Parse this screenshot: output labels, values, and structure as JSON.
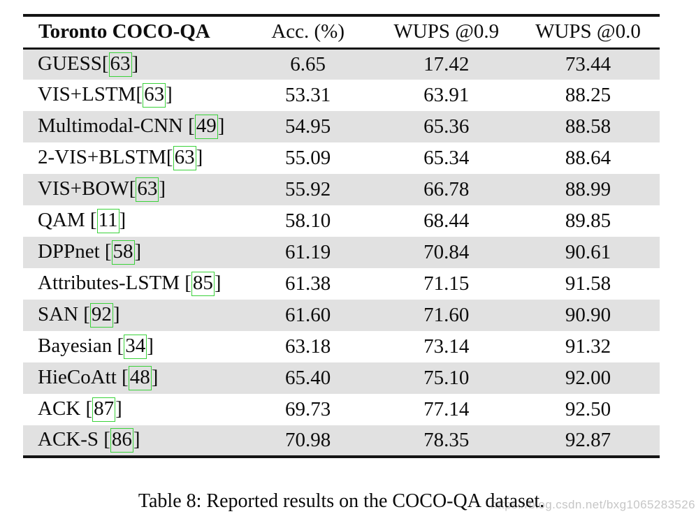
{
  "colors": {
    "row_shade": "#e1e1e1",
    "cite_box_green": "#3ad23a",
    "rule_black": "#141414",
    "watermark_gray": "#c6c6c6"
  },
  "table": {
    "columns": [
      "Toronto COCO-QA",
      "Acc. (%)",
      "WUPS @0.9",
      "WUPS @0.0"
    ],
    "rows": [
      {
        "pre": "GUESS[",
        "cite": "63",
        "post": "]",
        "acc": "6.65",
        "wups09": "17.42",
        "wups00": "73.44"
      },
      {
        "pre": "VIS+LSTM[",
        "cite": "63",
        "post": "]",
        "acc": "53.31",
        "wups09": "63.91",
        "wups00": "88.25"
      },
      {
        "pre": "Multimodal-CNN [",
        "cite": "49",
        "post": "]",
        "acc": "54.95",
        "wups09": "65.36",
        "wups00": "88.58"
      },
      {
        "pre": "2-VIS+BLSTM[",
        "cite": "63",
        "post": "]",
        "acc": "55.09",
        "wups09": "65.34",
        "wups00": "88.64"
      },
      {
        "pre": "VIS+BOW[",
        "cite": "63",
        "post": "]",
        "acc": "55.92",
        "wups09": "66.78",
        "wups00": "88.99"
      },
      {
        "pre": "QAM [",
        "cite": "11",
        "post": "]",
        "acc": "58.10",
        "wups09": "68.44",
        "wups00": "89.85"
      },
      {
        "pre": "DPPnet [",
        "cite": "58",
        "post": "]",
        "acc": "61.19",
        "wups09": "70.84",
        "wups00": "90.61"
      },
      {
        "pre": "Attributes-LSTM [",
        "cite": "85",
        "post": "]",
        "acc": "61.38",
        "wups09": "71.15",
        "wups00": "91.58"
      },
      {
        "pre": "SAN [",
        "cite": "92",
        "post": "]",
        "acc": "61.60",
        "wups09": "71.60",
        "wups00": "90.90"
      },
      {
        "pre": "Bayesian [",
        "cite": "34",
        "post": "]",
        "acc": "63.18",
        "wups09": "73.14",
        "wups00": "91.32"
      },
      {
        "pre": "HieCoAtt [",
        "cite": "48",
        "post": "]",
        "acc": "65.40",
        "wups09": "75.10",
        "wups00": "92.00"
      },
      {
        "pre": "ACK [",
        "cite": "87",
        "post": "]",
        "acc": "69.73",
        "wups09": "77.14",
        "wups00": "92.50"
      },
      {
        "pre": "ACK-S [",
        "cite": "86",
        "post": "]",
        "acc": "70.98",
        "wups09": "78.35",
        "wups00": "92.87"
      }
    ]
  },
  "caption": {
    "text": "Table 8: Reported results on the COCO-QA dataset."
  },
  "watermark": {
    "text": "https://blog.csdn.net/bxg1065283526"
  }
}
